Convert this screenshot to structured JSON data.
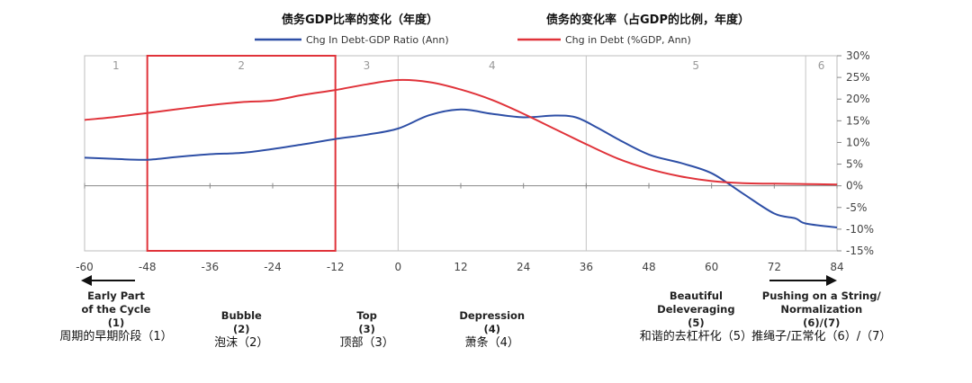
{
  "chart_data": {
    "type": "line",
    "x_ticks": [
      -60,
      -48,
      -36,
      -24,
      -12,
      0,
      12,
      24,
      36,
      48,
      60,
      72,
      84
    ],
    "ylim": [
      -15,
      30
    ],
    "y_ticks": [
      30,
      25,
      20,
      15,
      10,
      5,
      0,
      -5,
      -10,
      -15
    ],
    "y_tick_labels": [
      "30%",
      "25%",
      "20%",
      "15%",
      "10%",
      "5%",
      "0%",
      "-5%",
      "-10%",
      "-15%"
    ],
    "legend": [
      {
        "title": "债务GDP比率的变化（年度）",
        "label": "Chg In Debt-GDP Ratio (Ann)",
        "color": "#2e4fa6"
      },
      {
        "title": "债务的变化率（占GDP的比例，年度）",
        "label": "Chg in Debt (%GDP, Ann)",
        "color": "#e0333a"
      }
    ],
    "series": [
      {
        "name": "Chg In Debt-GDP Ratio (Ann)",
        "color": "#2e4fa6",
        "x": [
          -60,
          -54,
          -48,
          -42,
          -36,
          -30,
          -24,
          -18,
          -12,
          -6,
          0,
          6,
          12,
          18,
          24,
          30,
          34,
          38,
          42,
          48,
          54,
          60,
          66,
          72,
          76,
          78,
          84
        ],
        "y": [
          6.5,
          6.2,
          6.0,
          6.7,
          7.3,
          7.6,
          8.5,
          9.6,
          10.8,
          11.8,
          13.2,
          16.3,
          17.6,
          16.6,
          15.8,
          16.2,
          15.8,
          13.5,
          10.8,
          7.2,
          5.3,
          2.9,
          -1.8,
          -6.4,
          -7.5,
          -8.7,
          -9.6
        ]
      },
      {
        "name": "Chg in Debt (%GDP, Ann)",
        "color": "#e0333a",
        "x": [
          -60,
          -54,
          -48,
          -42,
          -36,
          -30,
          -24,
          -18,
          -12,
          -6,
          0,
          6,
          12,
          18,
          24,
          30,
          36,
          42,
          48,
          54,
          60,
          66,
          72,
          78,
          84
        ],
        "y": [
          15.2,
          15.9,
          16.8,
          17.7,
          18.6,
          19.3,
          19.7,
          21.0,
          22.1,
          23.4,
          24.4,
          23.9,
          22.2,
          19.8,
          16.6,
          13.1,
          9.6,
          6.3,
          3.9,
          2.2,
          1.1,
          0.6,
          0.5,
          0.4,
          0.3
        ]
      }
    ],
    "phase_boundaries": [
      -48,
      -12,
      0,
      36,
      78
    ],
    "highlight": {
      "x_range": [
        -48,
        -12
      ],
      "y_range": [
        -15,
        30
      ],
      "color": "#e0333a"
    },
    "phases": [
      {
        "num": "1",
        "center": -54,
        "en": [
          "Early Part",
          "of the Cycle",
          "(1)"
        ],
        "cn": "周期的早期阶段（1）"
      },
      {
        "num": "2",
        "center": -30,
        "en": [
          "Bubble",
          "(2)"
        ],
        "cn": "泡沫（2）"
      },
      {
        "num": "3",
        "center": -6,
        "en": [
          "Top",
          "(3)"
        ],
        "cn": "顶部（3）"
      },
      {
        "num": "4",
        "center": 18,
        "en": [
          "Depression",
          "(4)"
        ],
        "cn": "萧条（4）"
      },
      {
        "num": "5",
        "center": 57,
        "en": [
          "Beautiful",
          "Deleveraging",
          "(5)"
        ],
        "cn": "和谐的去杠杆化（5）"
      },
      {
        "num": "6",
        "center": 81,
        "en": [
          "Pushing on a String/",
          "Normalization",
          "(6)/(7)"
        ],
        "cn": "推绳子/正常化（6）/（7）"
      }
    ]
  }
}
